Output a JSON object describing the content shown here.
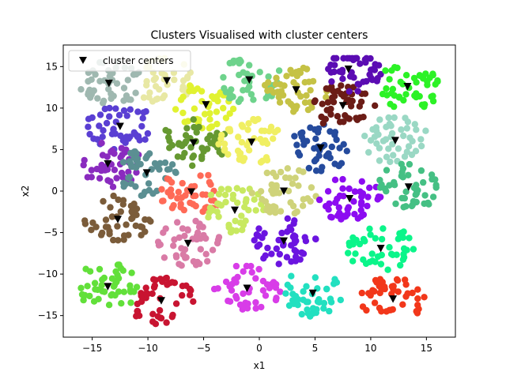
{
  "chart_data": {
    "type": "scatter",
    "title": "Clusters Visualised with cluster centers",
    "xlabel": "x1",
    "ylabel": "x2",
    "xlim": [
      -17.6,
      17.6
    ],
    "ylim": [
      -17.6,
      17.6
    ],
    "xticks": [
      -15,
      -10,
      -5,
      0,
      5,
      10,
      15
    ],
    "yticks": [
      -15,
      -10,
      -5,
      0,
      5,
      10,
      15
    ],
    "xtick_labels": [
      "−15",
      "−10",
      "−5",
      "0",
      "5",
      "10",
      "15"
    ],
    "ytick_labels": [
      "−15",
      "−10",
      "−5",
      "0",
      "5",
      "10",
      "15"
    ],
    "grid": false,
    "legend": {
      "placement": "top-left",
      "entries": [
        "cluster centers"
      ]
    },
    "points_per_cluster": 45,
    "clusters": [
      {
        "color": "#9fb8b0",
        "center": [
          -13.5,
          13.0
        ]
      },
      {
        "color": "#5a3fd3",
        "center": [
          -12.5,
          7.8
        ]
      },
      {
        "color": "#8a2bbf",
        "center": [
          -13.6,
          3.3
        ]
      },
      {
        "color": "#7b5c3a",
        "center": [
          -12.7,
          -3.4
        ]
      },
      {
        "color": "#62e03a",
        "center": [
          -13.6,
          -11.5
        ]
      },
      {
        "color": "#e8e8a4",
        "center": [
          -8.3,
          13.3
        ]
      },
      {
        "color": "#5b8f92",
        "center": [
          -10.1,
          2.2
        ]
      },
      {
        "color": "#ff6a57",
        "center": [
          -6.1,
          -0.1
        ]
      },
      {
        "color": "#d97ba6",
        "center": [
          -6.4,
          -6.3
        ]
      },
      {
        "color": "#c81431",
        "center": [
          -8.8,
          -13.2
        ]
      },
      {
        "color": "#e1f231",
        "center": [
          -4.8,
          10.4
        ]
      },
      {
        "color": "#669931",
        "center": [
          -5.9,
          5.8
        ]
      },
      {
        "color": "#c8e960",
        "center": [
          -2.2,
          -2.3
        ]
      },
      {
        "color": "#d83de8",
        "center": [
          -1.1,
          -11.7
        ]
      },
      {
        "color": "#6ed38c",
        "center": [
          -0.9,
          13.4
        ]
      },
      {
        "color": "#f0ef62",
        "center": [
          -0.7,
          5.9
        ]
      },
      {
        "color": "#cfd37a",
        "center": [
          2.2,
          0.0
        ]
      },
      {
        "color": "#6b14e0",
        "center": [
          2.2,
          -6.0
        ]
      },
      {
        "color": "#c5c245",
        "center": [
          3.3,
          12.2
        ]
      },
      {
        "color": "#254b9d",
        "center": [
          5.5,
          5.2
        ]
      },
      {
        "color": "#22e0c0",
        "center": [
          4.8,
          -12.3
        ]
      },
      {
        "color": "#8c0cf1",
        "center": [
          8.1,
          -0.9
        ]
      },
      {
        "color": "#6b1c16",
        "center": [
          7.5,
          10.3
        ]
      },
      {
        "color": "#5b0cb3",
        "center": [
          8.0,
          14.7
        ]
      },
      {
        "color": "#0bf58a",
        "center": [
          10.9,
          -6.9
        ]
      },
      {
        "color": "#f2371a",
        "center": [
          12.0,
          -13.0
        ]
      },
      {
        "color": "#9ad8c4",
        "center": [
          12.2,
          6.1
        ]
      },
      {
        "color": "#45c084",
        "center": [
          13.4,
          0.5
        ]
      },
      {
        "color": "#2cf226",
        "center": [
          13.3,
          12.6
        ]
      }
    ]
  }
}
